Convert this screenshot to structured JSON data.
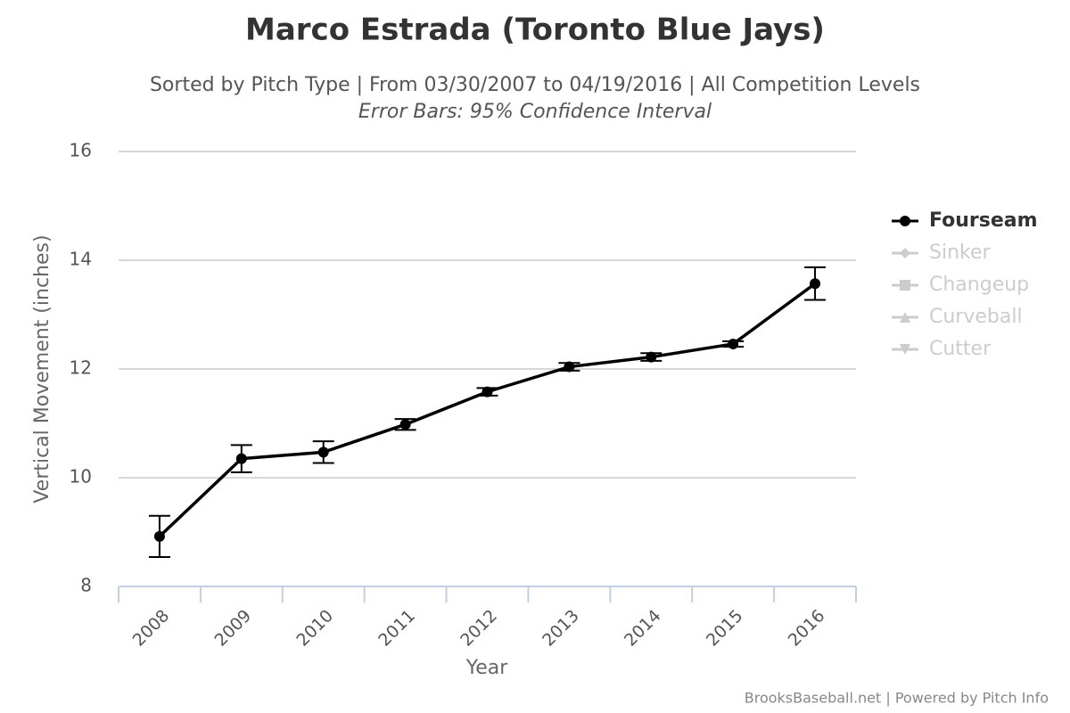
{
  "chart_data": {
    "type": "line",
    "title": "Marco Estrada (Toronto Blue Jays)",
    "subtitle": "Sorted by Pitch Type | From 03/30/2007 to 04/19/2016 | All Competition Levels",
    "subtitle2": "Error Bars: 95% Confidence Interval",
    "x_label": "Year",
    "y_label": "Vertical Movement (inches)",
    "credit": "BrooksBaseball.net | Powered by Pitch Info",
    "categories": [
      "2008",
      "2009",
      "2010",
      "2011",
      "2012",
      "2013",
      "2014",
      "2015",
      "2016"
    ],
    "series": [
      {
        "name": "Fourseam",
        "color": "#000000",
        "marker": "circle",
        "visible": true,
        "values": [
          8.92,
          10.35,
          10.47,
          10.98,
          11.58,
          12.04,
          12.22,
          12.46,
          13.57
        ],
        "errors": [
          0.38,
          0.25,
          0.2,
          0.1,
          0.07,
          0.07,
          0.07,
          0.05,
          0.3
        ]
      },
      {
        "name": "Sinker",
        "color": "#cccccc",
        "marker": "diamond",
        "visible": false
      },
      {
        "name": "Changeup",
        "color": "#cccccc",
        "marker": "square",
        "visible": false
      },
      {
        "name": "Curveball",
        "color": "#cccccc",
        "marker": "triangle",
        "visible": false
      },
      {
        "name": "Cutter",
        "color": "#cccccc",
        "marker": "triangle-down",
        "visible": false
      }
    ],
    "ylim": [
      8,
      16
    ],
    "yticks": [
      8,
      10,
      12,
      14,
      16
    ],
    "grid": true,
    "legend": "right"
  }
}
